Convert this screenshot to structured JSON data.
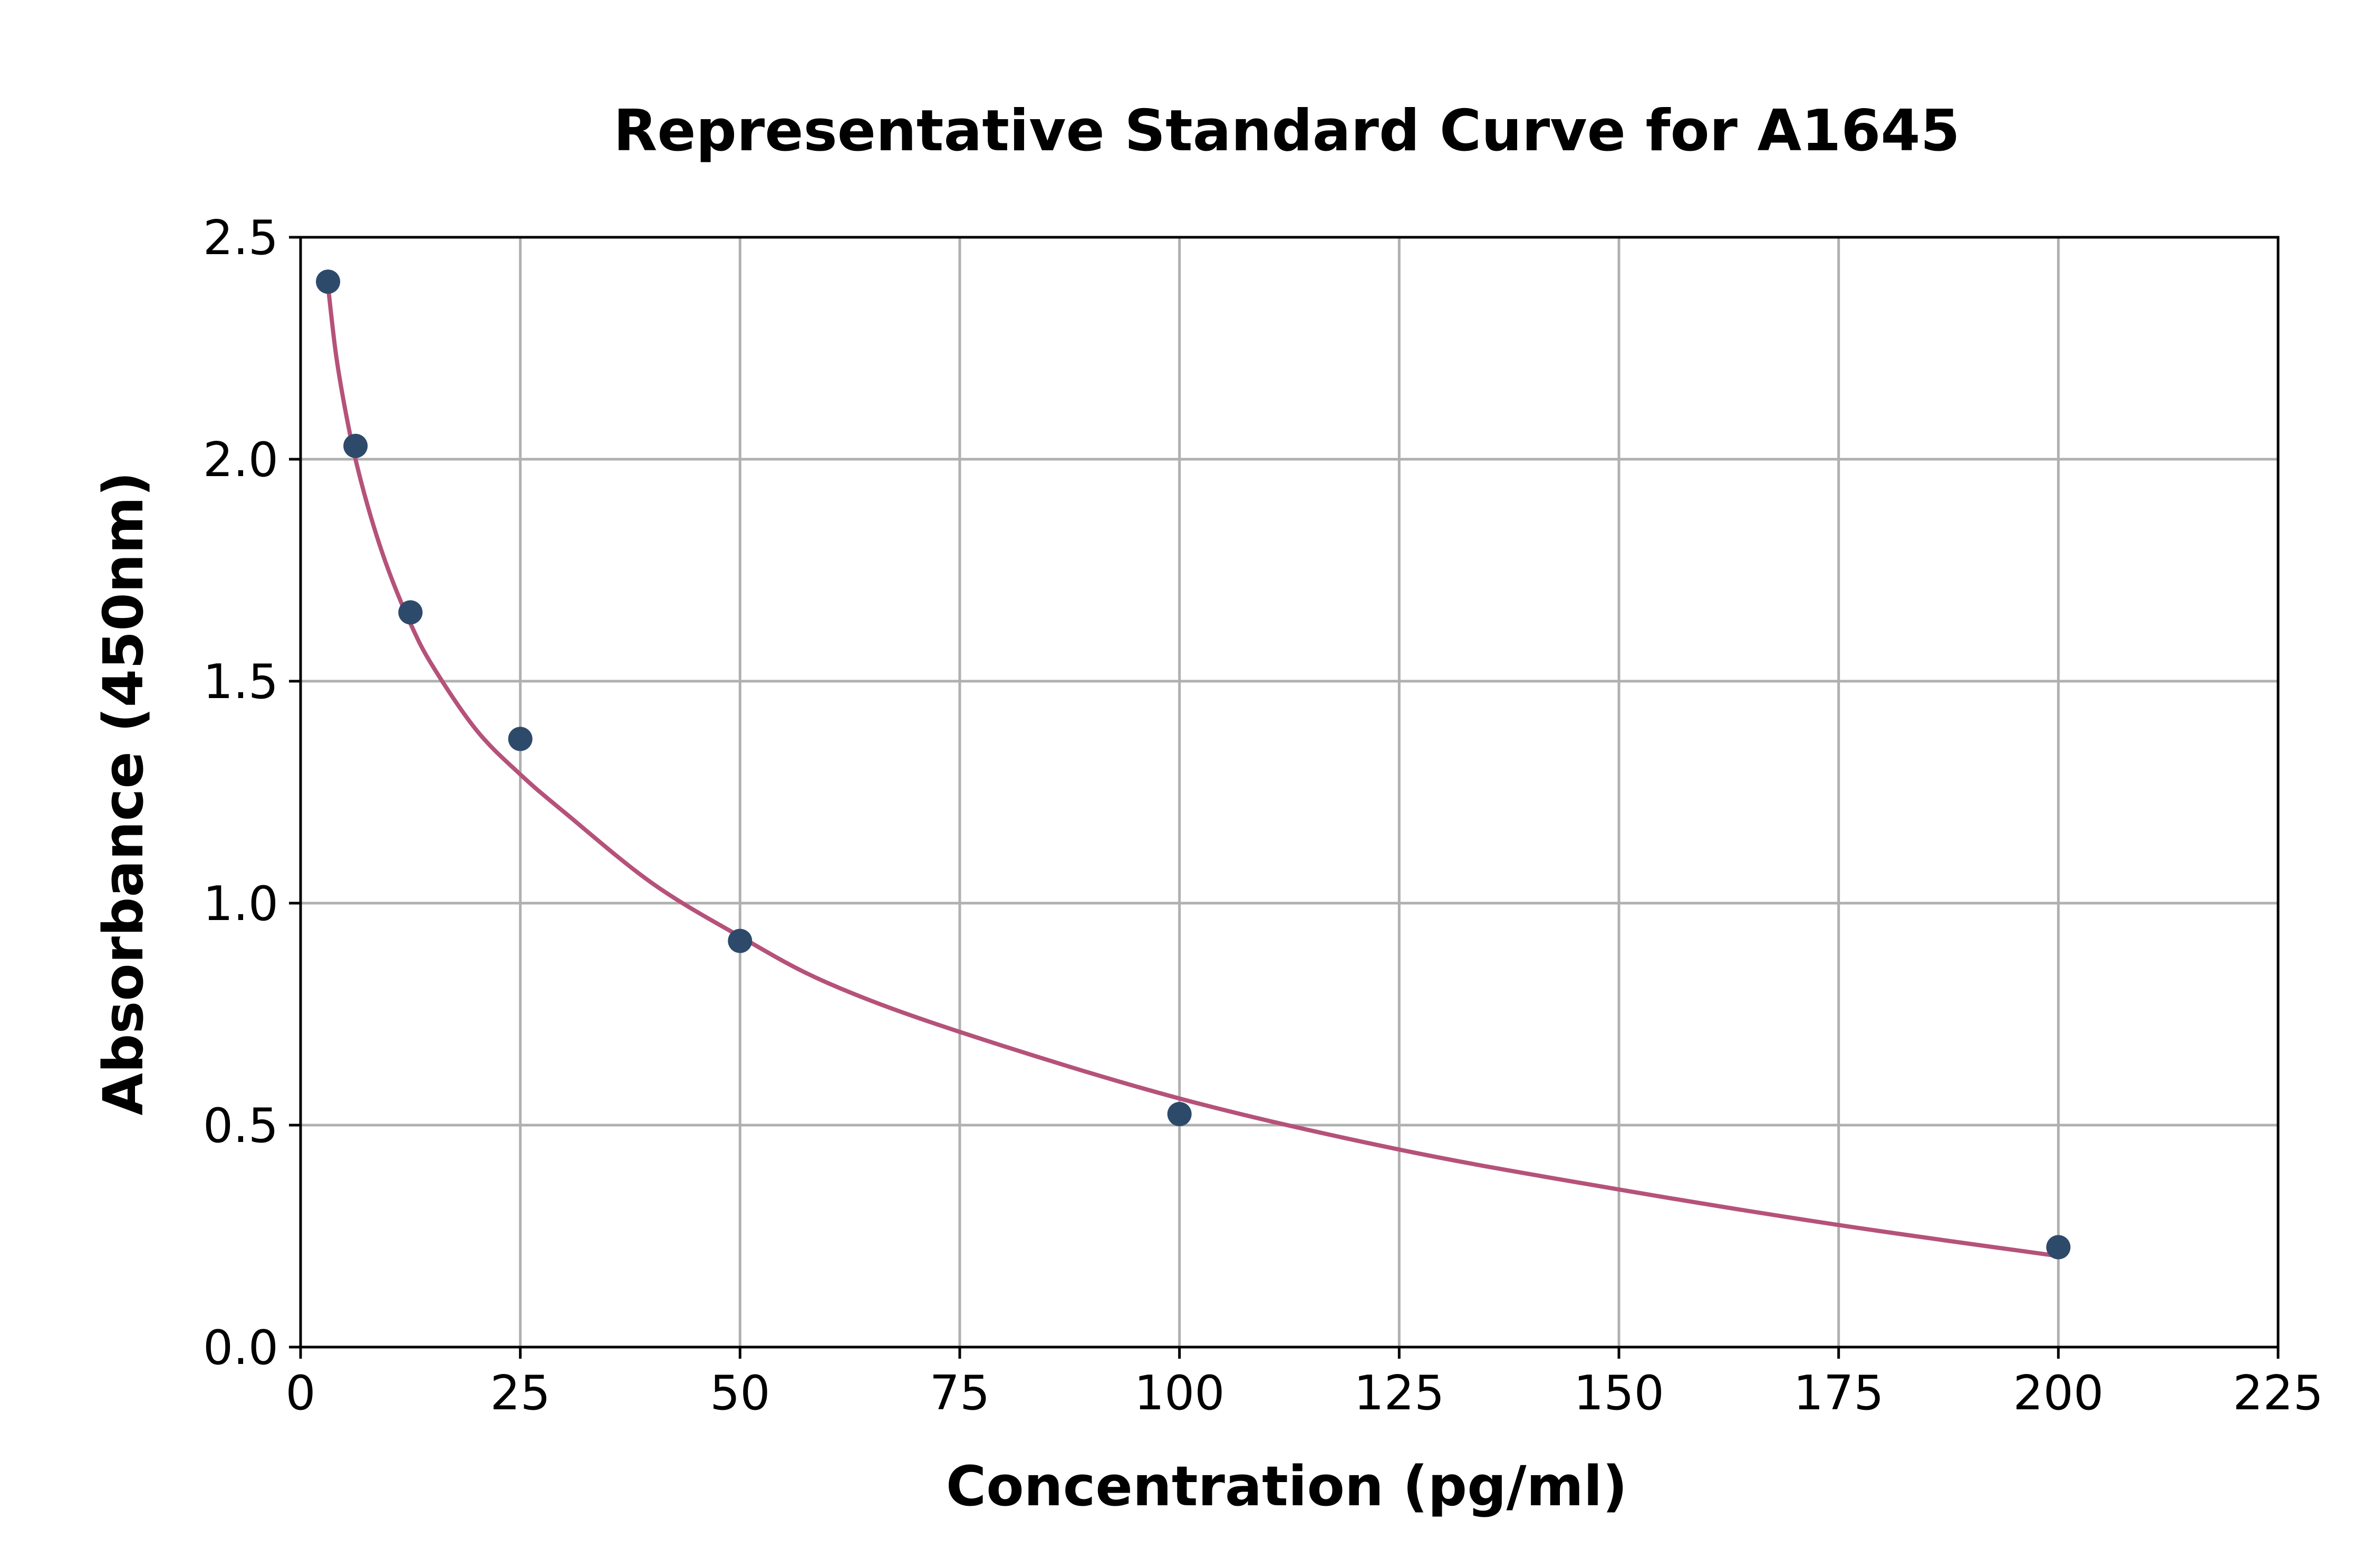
{
  "chart_data": {
    "type": "scatter",
    "title": "Representative Standard Curve for A1645",
    "xlabel": "Concentration (pg/ml)",
    "ylabel": "Absorbance (450nm)",
    "xlim": [
      0,
      225
    ],
    "ylim": [
      0,
      2.5
    ],
    "xticks": [
      0,
      25,
      50,
      75,
      100,
      125,
      150,
      175,
      200,
      225
    ],
    "xtick_labels": [
      "0",
      "25",
      "50",
      "75",
      "100",
      "125",
      "150",
      "175",
      "200",
      "225"
    ],
    "yticks": [
      0,
      0.5,
      1.0,
      1.5,
      2.0,
      2.5
    ],
    "ytick_labels": [
      "0.0",
      "0.5",
      "1.0",
      "1.5",
      "2.0",
      "2.5"
    ],
    "grid": true,
    "points": {
      "x": [
        3.125,
        6.25,
        12.5,
        25,
        50,
        100,
        200
      ],
      "y": [
        2.4,
        2.03,
        1.655,
        1.37,
        0.915,
        0.525,
        0.225
      ],
      "color": "#2e4a6b"
    },
    "fit_curve": {
      "x": [
        3.125,
        4,
        5,
        6.25,
        8,
        10,
        12.5,
        15,
        20,
        25,
        30,
        40,
        50,
        60,
        75,
        100,
        125,
        150,
        175,
        200
      ],
      "y": [
        2.39,
        2.24,
        2.12,
        2.0,
        1.87,
        1.75,
        1.63,
        1.535,
        1.39,
        1.29,
        1.205,
        1.045,
        0.925,
        0.82,
        0.71,
        0.56,
        0.445,
        0.355,
        0.275,
        0.205
      ],
      "color": "#b5527a"
    }
  }
}
